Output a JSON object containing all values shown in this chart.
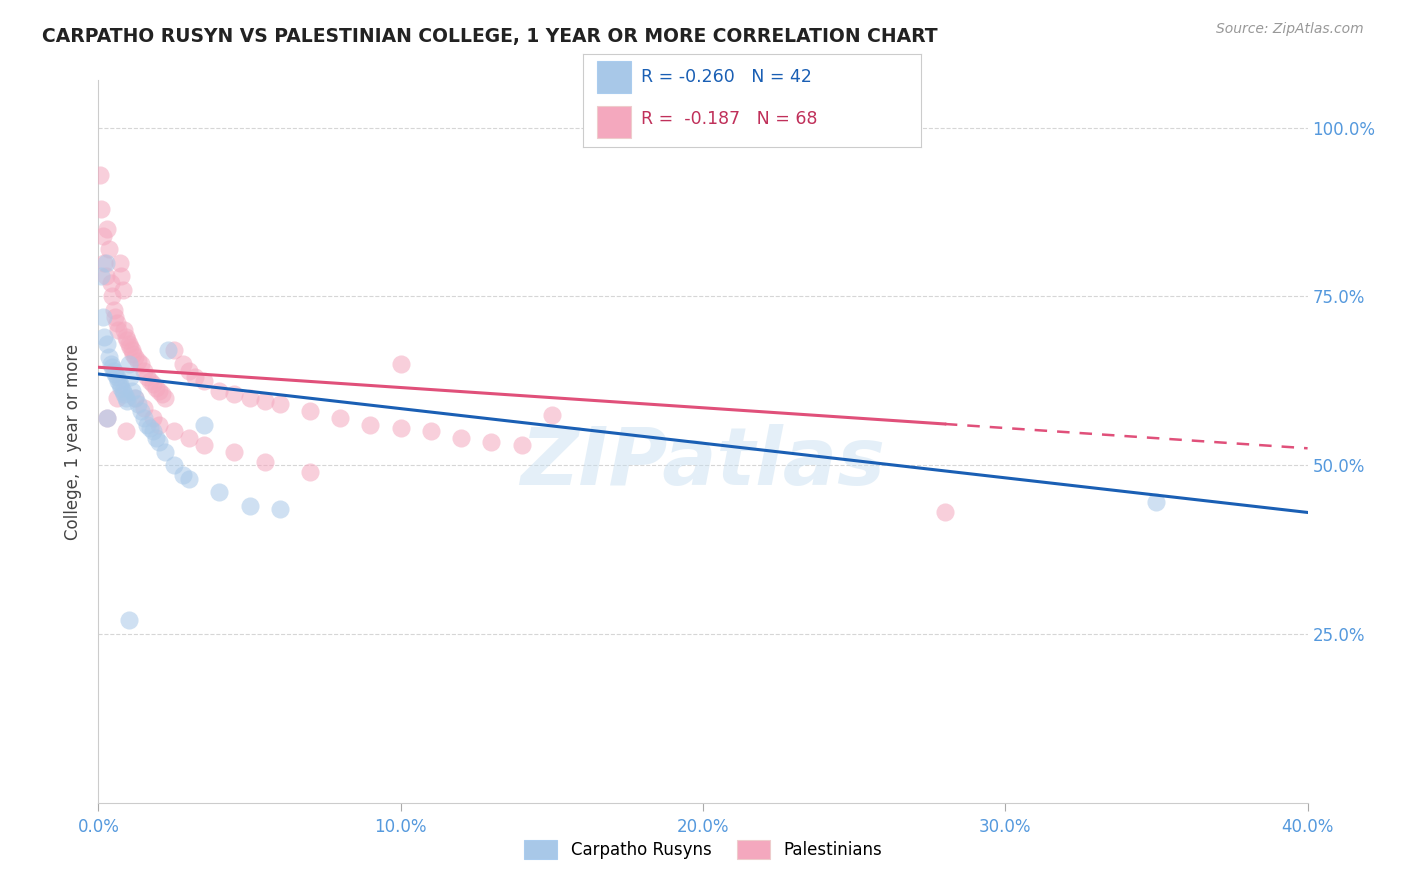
{
  "title": "CARPATHO RUSYN VS PALESTINIAN COLLEGE, 1 YEAR OR MORE CORRELATION CHART",
  "source": "Source: ZipAtlas.com",
  "ylabel": "College, 1 year or more",
  "x_tick_values": [
    0,
    10,
    20,
    30,
    40
  ],
  "y_tick_values": [
    25,
    50,
    75,
    100
  ],
  "xlim": [
    0.0,
    40.0
  ],
  "ylim": [
    0.0,
    107.0
  ],
  "legend_labels": [
    "Carpatho Rusyns",
    "Palestinians"
  ],
  "R_blue": -0.26,
  "N_blue": 42,
  "R_pink": -0.187,
  "N_pink": 68,
  "blue_color": "#a8c8e8",
  "pink_color": "#f4a8be",
  "blue_line_color": "#1a5fb4",
  "pink_line_color": "#e0507a",
  "watermark": "ZIPatlas",
  "blue_reg_x0": 0,
  "blue_reg_y0": 63.5,
  "blue_reg_x1": 40,
  "blue_reg_y1": 43.0,
  "pink_reg_x0": 0,
  "pink_reg_y0": 64.5,
  "pink_reg_x1": 40,
  "pink_reg_y1": 52.5,
  "pink_dash_start": 28,
  "blue_scatter_x": [
    0.1,
    0.15,
    0.2,
    0.25,
    0.3,
    0.35,
    0.4,
    0.45,
    0.5,
    0.55,
    0.6,
    0.65,
    0.7,
    0.75,
    0.8,
    0.85,
    0.9,
    0.95,
    1.0,
    1.05,
    1.1,
    1.2,
    1.3,
    1.4,
    1.5,
    1.6,
    1.7,
    1.8,
    1.9,
    2.0,
    2.2,
    2.5,
    2.8,
    3.0,
    3.5,
    4.0,
    5.0,
    6.0,
    2.3,
    0.3,
    35.0,
    1.0
  ],
  "blue_scatter_y": [
    78.0,
    72.0,
    69.0,
    80.0,
    68.0,
    66.0,
    65.0,
    64.5,
    64.0,
    63.5,
    63.0,
    62.5,
    62.0,
    61.5,
    61.0,
    60.5,
    60.0,
    59.5,
    65.0,
    63.0,
    61.0,
    60.0,
    59.0,
    58.0,
    57.0,
    56.0,
    55.5,
    55.0,
    54.0,
    53.5,
    52.0,
    50.0,
    48.5,
    48.0,
    56.0,
    46.0,
    44.0,
    43.5,
    67.0,
    57.0,
    44.5,
    27.0
  ],
  "pink_scatter_x": [
    0.05,
    0.1,
    0.15,
    0.2,
    0.25,
    0.3,
    0.35,
    0.4,
    0.45,
    0.5,
    0.55,
    0.6,
    0.65,
    0.7,
    0.75,
    0.8,
    0.85,
    0.9,
    0.95,
    1.0,
    1.05,
    1.1,
    1.15,
    1.2,
    1.3,
    1.4,
    1.5,
    1.6,
    1.7,
    1.8,
    1.9,
    2.0,
    2.1,
    2.2,
    2.5,
    2.8,
    3.0,
    3.2,
    3.5,
    4.0,
    4.5,
    5.0,
    5.5,
    6.0,
    7.0,
    8.0,
    9.0,
    10.0,
    11.0,
    12.0,
    13.0,
    14.0,
    0.3,
    0.6,
    0.9,
    1.2,
    1.5,
    1.8,
    2.0,
    2.5,
    3.0,
    3.5,
    4.5,
    5.5,
    7.0,
    10.0,
    15.0,
    28.0
  ],
  "pink_scatter_y": [
    93.0,
    88.0,
    84.0,
    80.0,
    78.0,
    85.0,
    82.0,
    77.0,
    75.0,
    73.0,
    72.0,
    71.0,
    70.0,
    80.0,
    78.0,
    76.0,
    70.0,
    69.0,
    68.5,
    68.0,
    67.5,
    67.0,
    66.5,
    66.0,
    65.5,
    65.0,
    64.0,
    63.0,
    62.5,
    62.0,
    61.5,
    61.0,
    60.5,
    60.0,
    67.0,
    65.0,
    64.0,
    63.0,
    62.5,
    61.0,
    60.5,
    60.0,
    59.5,
    59.0,
    58.0,
    57.0,
    56.0,
    55.5,
    55.0,
    54.0,
    53.5,
    53.0,
    57.0,
    60.0,
    55.0,
    60.0,
    58.5,
    57.0,
    56.0,
    55.0,
    54.0,
    53.0,
    52.0,
    50.5,
    49.0,
    65.0,
    57.5,
    43.0
  ]
}
